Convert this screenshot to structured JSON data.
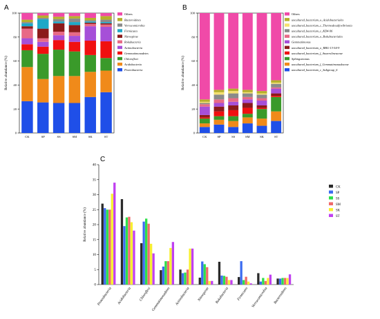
{
  "chart_data": [
    {
      "panel": "A",
      "type": "bar",
      "stacked": true,
      "categories": [
        "CK",
        "SP",
        "SS",
        "SM",
        "SK",
        "ST"
      ],
      "ylabel": "Relative abundance (%)",
      "ylim": [
        0,
        100
      ],
      "yticks": [
        0,
        20,
        40,
        60,
        80,
        100
      ],
      "legend_position": "right",
      "series": [
        {
          "name": "Proteobacteria",
          "color": "#1f4fe8",
          "values": [
            26.5,
            25.5,
            25,
            25,
            30,
            34
          ]
        },
        {
          "name": "Acidobacteria",
          "color": "#f08a1a",
          "values": [
            28.5,
            19.5,
            22.5,
            22.5,
            21,
            18
          ]
        },
        {
          "name": "Chloroflexi",
          "color": "#3a9a2a",
          "values": [
            14,
            21,
            22,
            20.5,
            14,
            10.5
          ]
        },
        {
          "name": "Gemmatimonadetes",
          "color": "#f01010",
          "values": [
            5,
            6,
            8,
            8,
            12,
            14
          ]
        },
        {
          "name": "Actinobacteria",
          "color": "#a64fd8",
          "values": [
            5,
            4,
            4,
            5,
            12,
            12
          ]
        },
        {
          "name": "Rokubacteria",
          "color": "#e86a86",
          "values": [
            8,
            3,
            3,
            3,
            2,
            2
          ]
        },
        {
          "name": "Nitrospirae",
          "color": "#8b1a1a",
          "values": [
            2,
            8,
            7,
            6,
            1,
            1
          ]
        },
        {
          "name": "Firmicutes",
          "color": "#1ea8c8",
          "values": [
            2.5,
            8,
            1.5,
            2.5,
            1,
            1
          ]
        },
        {
          "name": "Verrucomicrobia",
          "color": "#8a8a8a",
          "values": [
            1,
            1,
            2,
            3,
            1,
            2
          ]
        },
        {
          "name": "Bacteroidetes",
          "color": "#b6b02a",
          "values": [
            2,
            2,
            2,
            2,
            2,
            3
          ]
        },
        {
          "name": "Others",
          "color": "#f04aa8",
          "values": [
            5.5,
            2,
            3,
            2.5,
            4,
            2.5
          ]
        }
      ]
    },
    {
      "panel": "B",
      "type": "bar",
      "stacked": true,
      "categories": [
        "CK",
        "SP",
        "SS",
        "SM",
        "SK",
        "ST"
      ],
      "ylabel": "Relative abundance (%)",
      "ylim": [
        0,
        100
      ],
      "yticks": [
        0,
        20,
        40,
        60,
        80,
        100
      ],
      "legend_position": "right",
      "series": [
        {
          "name": "uncultured_bacterium_c_Subgroup_6",
          "color": "#1f4fe8",
          "values": [
            5,
            7,
            5,
            8,
            6,
            10
          ]
        },
        {
          "name": "uncultured_bacterium_f_Gemmatimonadaceae",
          "color": "#f08a1a",
          "values": [
            3,
            4,
            5,
            5,
            6,
            8
          ]
        },
        {
          "name": "Sphingomonas",
          "color": "#3a9a2a",
          "values": [
            4,
            3,
            4,
            3,
            8,
            12
          ]
        },
        {
          "name": "uncultured_bacterium_f_Anaerolineaceae",
          "color": "#f01010",
          "values": [
            1,
            4,
            5,
            5,
            1,
            1
          ]
        },
        {
          "name": "uncultured_bacterium_o_RBG-13-54-9",
          "color": "#8b1a1a",
          "values": [
            2,
            4,
            4,
            4,
            2,
            2
          ]
        },
        {
          "name": "Gemmatimonas",
          "color": "#a64fd8",
          "values": [
            7,
            3,
            3,
            3,
            4,
            4
          ]
        },
        {
          "name": "uncultured_bacterium_o_Rokubacteriales",
          "color": "#e86a86",
          "values": [
            2,
            3,
            3,
            2,
            2,
            1
          ]
        },
        {
          "name": "uncultured_bacterium_c_KD4-96",
          "color": "#8a8a8a",
          "values": [
            1,
            4,
            4,
            3,
            3,
            3
          ]
        },
        {
          "name": "uncultured_bacterium_c_Thermodesulfovibrionia",
          "color": "#f5e070",
          "values": [
            1,
            2,
            2,
            1,
            1,
            1
          ]
        },
        {
          "name": "uncultured_bacterium_o_Acidobacteriales",
          "color": "#b6b02a",
          "values": [
            2,
            2,
            2,
            2,
            2,
            2
          ]
        },
        {
          "name": "Others",
          "color": "#f04aa8",
          "values": [
            72,
            64,
            63,
            64,
            65,
            56
          ]
        }
      ]
    },
    {
      "panel": "C",
      "type": "bar",
      "stacked": false,
      "categories": [
        "Proteobacteria",
        "Acidobacteria",
        "Chloroflexi",
        "Gemmatimonadetes",
        "Actinobacteria",
        "Nitrospirae",
        "Rokubacteria",
        "Firmicutes",
        "Verrucomicrobia",
        "Bacteroidetes"
      ],
      "ylabel": "Relative abundance (%)",
      "ylim": [
        0,
        40
      ],
      "yticks": [
        0,
        5,
        10,
        15,
        20,
        25,
        30,
        35,
        40
      ],
      "legend_position": "right",
      "series": [
        {
          "name": "CK",
          "color": "#2a2a2a",
          "values": [
            27,
            28.5,
            13.8,
            4.8,
            5,
            2.3,
            7.6,
            2.5,
            3.8,
            2
          ]
        },
        {
          "name": "SP",
          "color": "#3c6cf0",
          "values": [
            25.5,
            19.5,
            21,
            6,
            3.8,
            7.7,
            3,
            7.8,
            1,
            2
          ]
        },
        {
          "name": "SS",
          "color": "#2ee04a",
          "values": [
            25,
            22.4,
            22,
            7.8,
            4,
            6.8,
            2.9,
            1.5,
            2.2,
            2.2
          ]
        },
        {
          "name": "SM",
          "color": "#f06a6a",
          "values": [
            25,
            22.6,
            20.3,
            7.8,
            5,
            5.8,
            2.6,
            2.6,
            1.2,
            2.2
          ]
        },
        {
          "name": "SK",
          "color": "#f8f030",
          "values": [
            30.3,
            20.8,
            13.6,
            12.2,
            12,
            1.2,
            1.5,
            1,
            2.2,
            2.2
          ]
        },
        {
          "name": "ST",
          "color": "#c040f0",
          "values": [
            34,
            18,
            10.4,
            14.2,
            12,
            1.2,
            1.5,
            0.4,
            3.3,
            3.4
          ]
        }
      ]
    }
  ]
}
